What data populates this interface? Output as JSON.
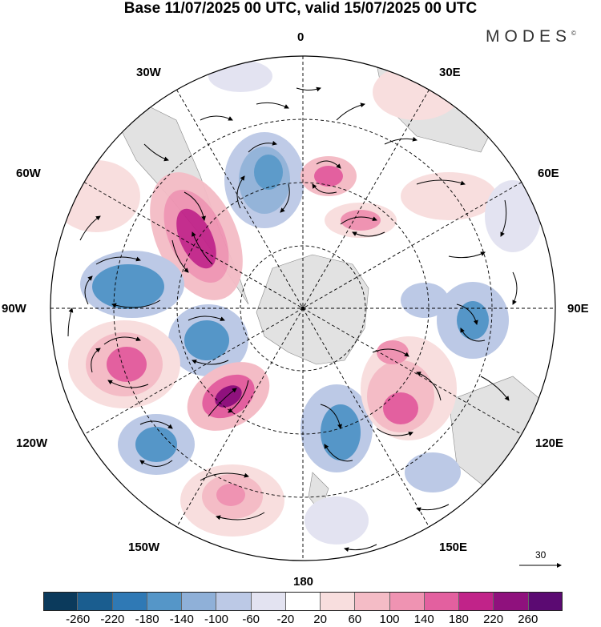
{
  "title": "Base 11/07/2025 00 UTC, valid 15/07/2025 00 UTC",
  "logo": "MODES",
  "logo_mark": "©",
  "longitude_labels": {
    "lon_0": "0",
    "lon_30e": "30E",
    "lon_60e": "60E",
    "lon_90e": "90E",
    "lon_120e": "120E",
    "lon_150e": "150E",
    "lon_180": "180",
    "lon_150w": "150W",
    "lon_120w": "120W",
    "lon_90w": "90W",
    "lon_60w": "60W",
    "lon_30w": "30W"
  },
  "reference_vector": "30",
  "colorbar": {
    "colors": [
      "#0b3a5c",
      "#1a5d8f",
      "#2f79b5",
      "#5596c8",
      "#8fb0d8",
      "#bcc9e6",
      "#e3e3f1",
      "#ffffff",
      "#f8dede",
      "#f4bcc6",
      "#ef93b2",
      "#e3609f",
      "#c12389",
      "#8f117d",
      "#5b0a72"
    ],
    "labels": [
      "-260",
      "-220",
      "-180",
      "-140",
      "-100",
      "-60",
      "-20",
      "20",
      "60",
      "100",
      "140",
      "180",
      "220",
      "260"
    ]
  }
}
